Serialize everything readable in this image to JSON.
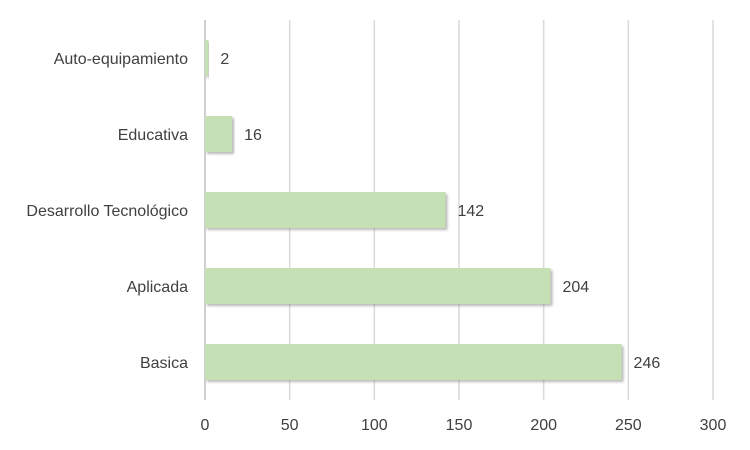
{
  "chart_data": {
    "type": "bar",
    "orientation": "horizontal",
    "categories": [
      "Auto-equipamiento",
      "Educativa",
      "Desarrollo Tecnológico",
      "Aplicada",
      "Basica"
    ],
    "values": [
      2,
      16,
      142,
      204,
      246
    ],
    "title": "",
    "xlabel": "",
    "ylabel": "",
    "xlim": [
      0,
      300
    ],
    "x_ticks": [
      0,
      50,
      100,
      150,
      200,
      250,
      300
    ],
    "x_tick_labels": [
      "0",
      "50",
      "100",
      "150",
      "200",
      "250",
      "300"
    ],
    "data_labels": [
      "2",
      "16",
      "142",
      "204",
      "246"
    ],
    "grid": "vertical",
    "legend": "none",
    "colors": {
      "bar_fill": "#c5e0b4",
      "bar_shadow": "#8c8c8c",
      "grid": "#d9d9d9",
      "axis": "#bfbfbf",
      "text": "#404040"
    }
  }
}
